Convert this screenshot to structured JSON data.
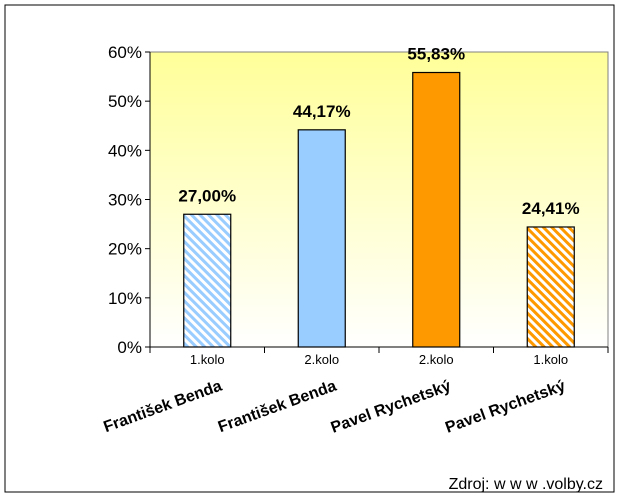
{
  "chart_data": {
    "type": "bar",
    "categories": [
      "1.kolo",
      "2.kolo",
      "2.kolo",
      "1.kolo"
    ],
    "candidates": [
      "František Benda",
      "František Benda",
      "Pavel Rychetský",
      "Pavel Rychetský"
    ],
    "values": [
      27.0,
      44.17,
      55.83,
      24.41
    ],
    "value_labels": [
      "27,00%",
      "44,17%",
      "55,83%",
      "24,41%"
    ],
    "bar_styles": [
      "hatched",
      "solid",
      "solid",
      "hatched"
    ],
    "bar_colors": [
      "#99ccff",
      "#99ccff",
      "#ff9900",
      "#ff9900"
    ],
    "ylim": [
      0,
      60
    ],
    "yticks": [
      0,
      10,
      20,
      30,
      40,
      50,
      60
    ],
    "ytick_labels": [
      "0%",
      "10%",
      "20%",
      "30%",
      "40%",
      "50%",
      "60%"
    ],
    "title": "",
    "xlabel": "",
    "ylabel": "",
    "grid": false,
    "plot_background": [
      "#ffff99",
      "#ffffff"
    ]
  },
  "source": "Zdroj: w w w .volby.cz"
}
